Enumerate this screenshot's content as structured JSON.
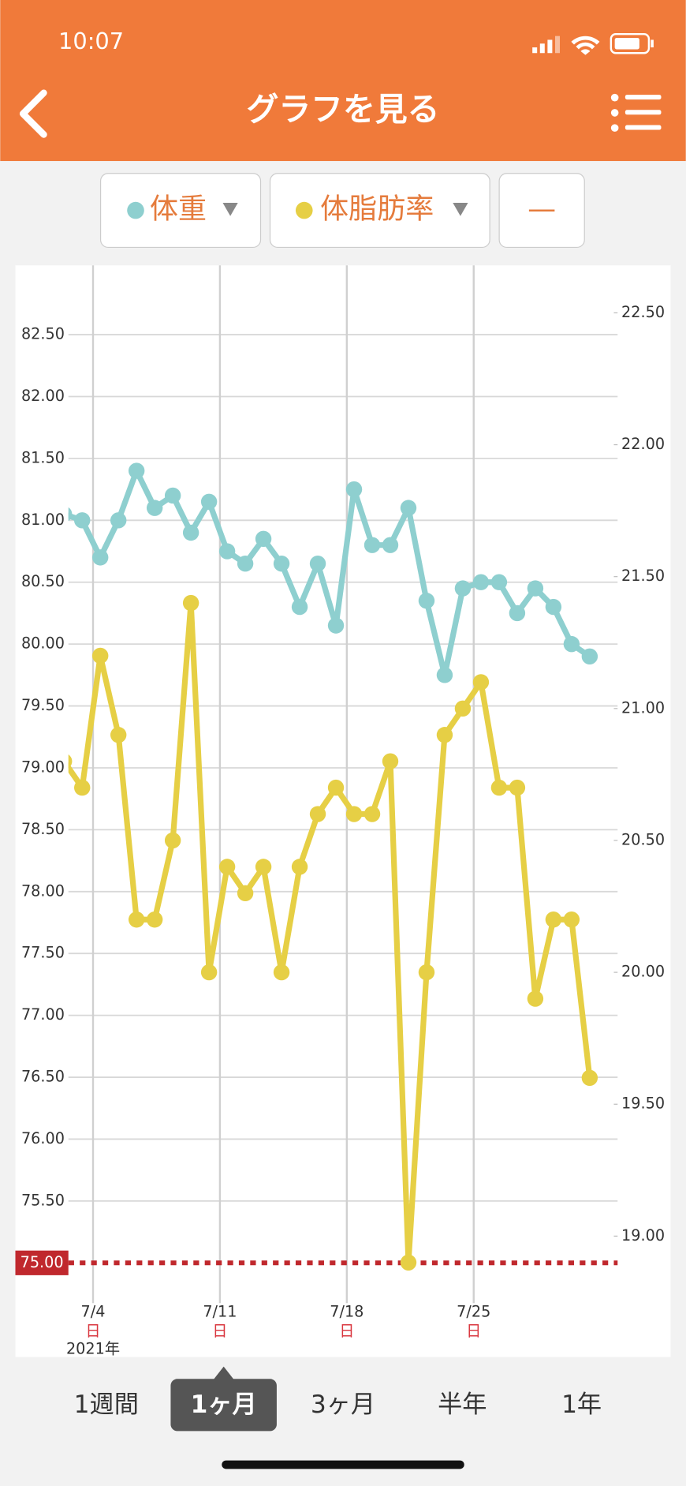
{
  "status_bar": {
    "time": "10:07"
  },
  "header": {
    "title": "グラフを見る"
  },
  "extra_selector": "—",
  "chart_data": {
    "type": "line",
    "x": [
      2.4,
      3.4,
      4.4,
      5.4,
      6.4,
      7.4,
      8.4,
      9.4,
      10.4,
      11.4,
      12.4,
      13.4,
      14.4,
      15.4,
      16.4,
      17.4,
      18.4,
      19.4,
      20.4,
      21.4,
      22.4,
      23.4,
      24.4,
      25.4,
      26.4,
      27.4,
      28.4,
      29.4,
      30.4,
      31.4
    ],
    "series": [
      {
        "name": "体重",
        "color": "#8ecfcf",
        "values": [
          81.05,
          81.0,
          80.7,
          81.0,
          81.4,
          81.1,
          81.2,
          80.9,
          81.15,
          80.75,
          80.65,
          80.85,
          80.65,
          80.3,
          80.65,
          80.15,
          81.25,
          80.8,
          80.8,
          81.1,
          80.35,
          79.75,
          80.45,
          80.5,
          80.5,
          80.25,
          80.45,
          80.3,
          80.0,
          79.9
        ]
      },
      {
        "name": "体脂肪率",
        "color": "#e6cf45",
        "axis": "y2",
        "values": [
          20.8,
          20.7,
          21.2,
          20.9,
          20.2,
          20.2,
          20.5,
          21.4,
          20.0,
          20.4,
          20.3,
          20.4,
          20.0,
          20.4,
          20.6,
          20.7,
          20.6,
          20.6,
          20.8,
          18.9,
          20.0,
          20.9,
          21.0,
          21.1,
          20.7,
          20.7,
          19.9,
          20.2,
          20.2,
          19.6
        ]
      }
    ],
    "xlim": [
      2.64,
      32.94
    ],
    "xticks": [
      {
        "value": 4,
        "label": "7/4"
      },
      {
        "value": 11,
        "label": "7/11"
      },
      {
        "value": 18,
        "label": "7/18"
      },
      {
        "value": 25,
        "label": "7/25"
      }
    ],
    "xtick_weekday": [
      "日",
      "日",
      "日",
      "日"
    ],
    "year_label": "2021年",
    "ylim": [
      74.79,
      83.06
    ],
    "yticks": [
      {
        "value": 75.5,
        "label": "75.50"
      },
      {
        "value": 76,
        "label": "76.00"
      },
      {
        "value": 76.5,
        "label": "76.50"
      },
      {
        "value": 77,
        "label": "77.00"
      },
      {
        "value": 77.5,
        "label": "77.50"
      },
      {
        "value": 78,
        "label": "78.00"
      },
      {
        "value": 78.5,
        "label": "78.50"
      },
      {
        "value": 79,
        "label": "79.00"
      },
      {
        "value": 79.5,
        "label": "79.50"
      },
      {
        "value": 80,
        "label": "80.00"
      },
      {
        "value": 80.5,
        "label": "80.50"
      },
      {
        "value": 81,
        "label": "81.00"
      },
      {
        "value": 81.5,
        "label": "81.50"
      },
      {
        "value": 82,
        "label": "82.00"
      },
      {
        "value": 82.5,
        "label": "82.50"
      }
    ],
    "y2lim": [
      18.8,
      22.68
    ],
    "y2ticks": [
      {
        "value": 19,
        "label": "19.00"
      },
      {
        "value": 19.5,
        "label": "19.50"
      },
      {
        "value": 20,
        "label": "20.00"
      },
      {
        "value": 20.5,
        "label": "20.50"
      },
      {
        "value": 21,
        "label": "21.00"
      },
      {
        "value": 21.5,
        "label": "21.50"
      },
      {
        "value": 22,
        "label": "22.00"
      },
      {
        "value": 22.5,
        "label": "22.50"
      }
    ],
    "target": {
      "value": 75,
      "label": "75.00",
      "color": "#c0282d"
    },
    "grid": true
  },
  "tabs": {
    "items": [
      "1週間",
      "1ヶ月",
      "3ヶ月",
      "半年",
      "1年"
    ],
    "selected": 1
  }
}
